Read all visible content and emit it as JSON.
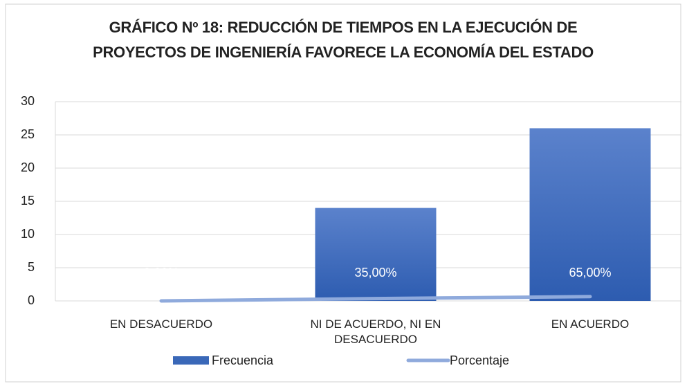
{
  "chart_data": {
    "type": "bar",
    "title": "GRÁFICO Nº 18: REDUCCIÓN DE TIEMPOS EN LA EJECUCIÓN DE PROYECTOS DE INGENIERÍA FAVORECE LA ECONOMÍA DEL ESTADO",
    "categories": [
      "EN DESACUERDO",
      "NI DE ACUERDO, NI EN DESACUERDO",
      "EN ACUERDO"
    ],
    "series": [
      {
        "name": "Frecuencia",
        "type": "bar",
        "color": "#3a68b8",
        "values": [
          0,
          14,
          26
        ]
      },
      {
        "name": "Porcentaje",
        "type": "line",
        "color": "#8faadc",
        "values": [
          0,
          0.35,
          0.65
        ],
        "value_labels": [
          "0,00%",
          "35,00%",
          "65,00%"
        ]
      }
    ],
    "ylim": [
      0,
      30
    ],
    "yticks": [
      0,
      5,
      10,
      15,
      20,
      25,
      30
    ],
    "grid": true,
    "legend": "bottom"
  }
}
